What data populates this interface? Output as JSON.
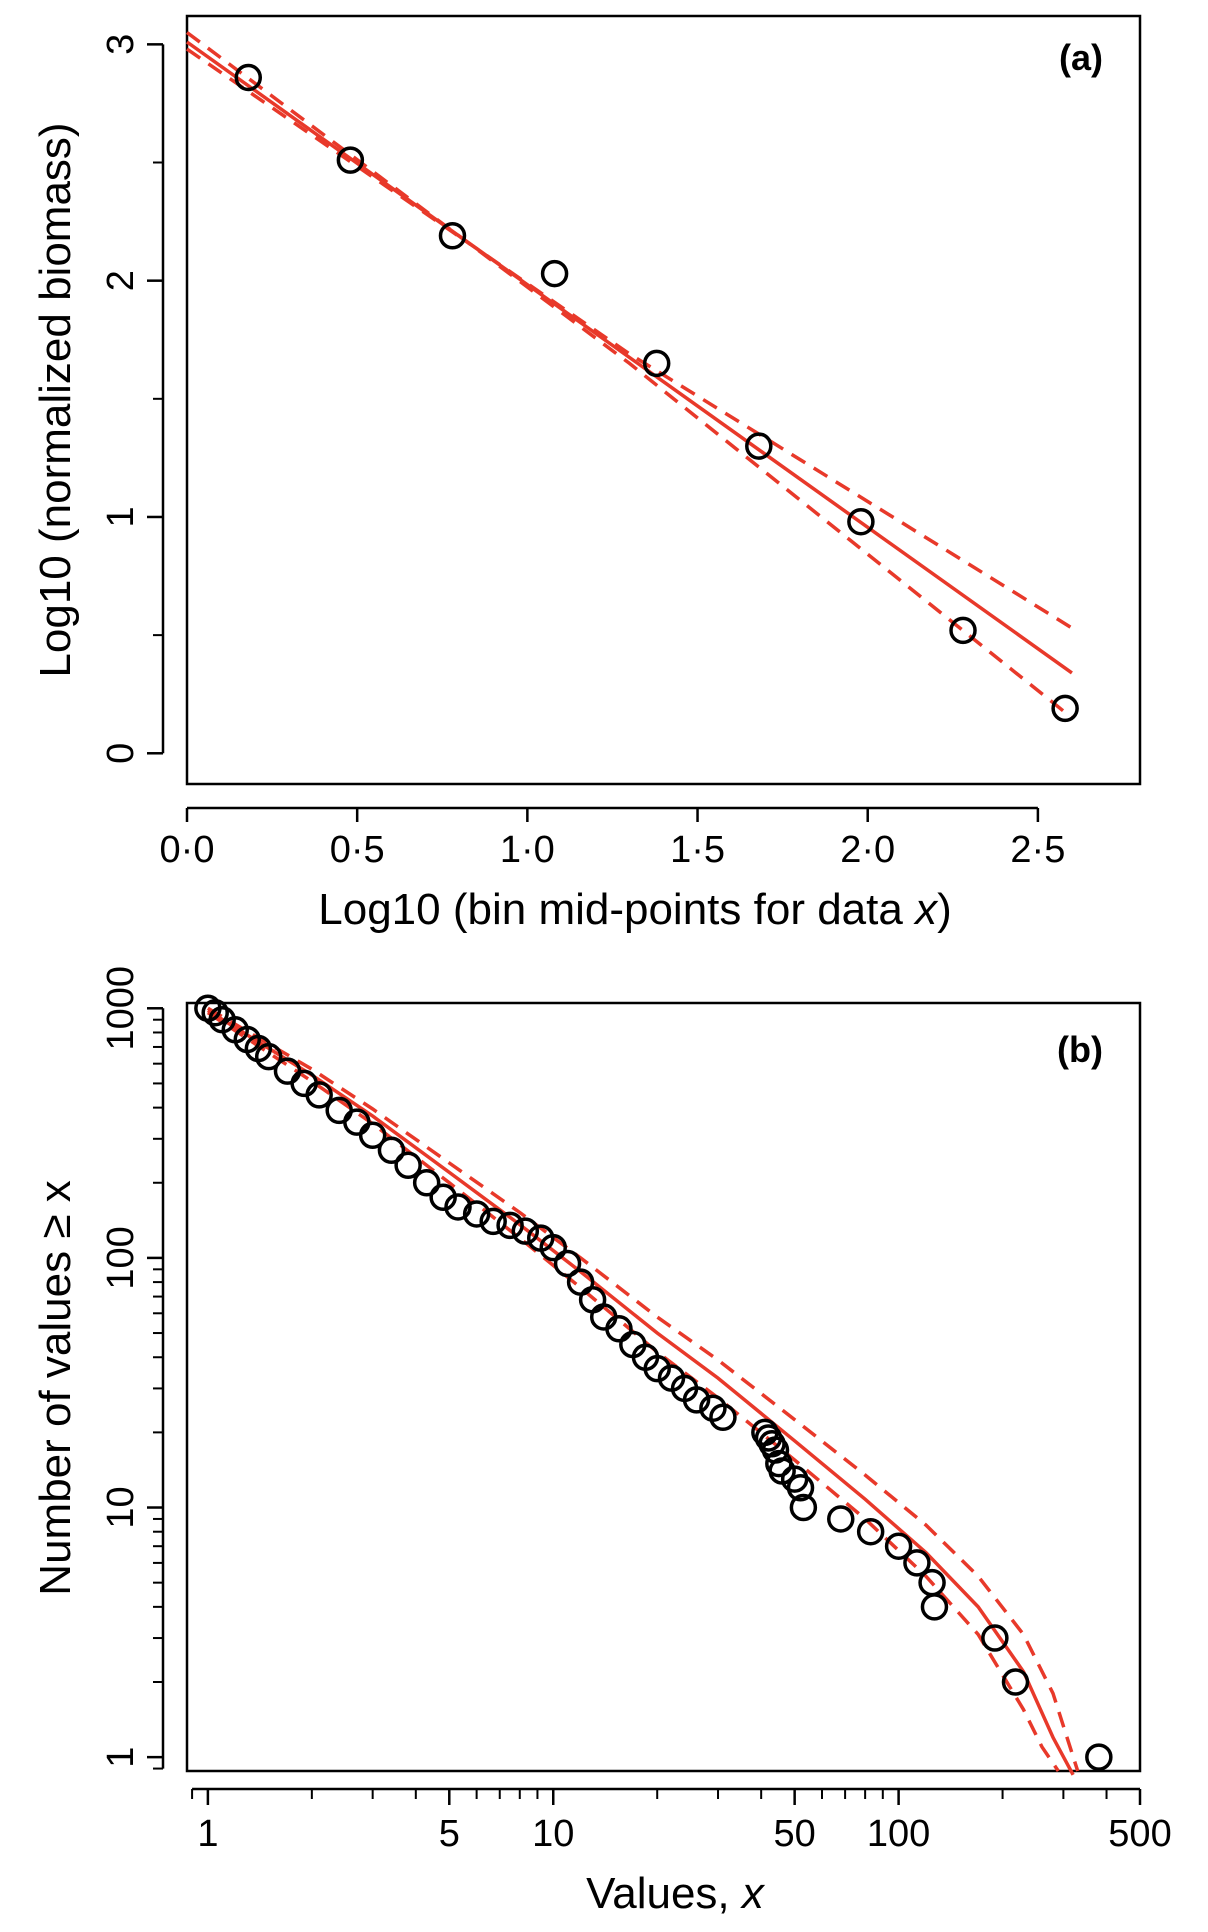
{
  "chart_data": [
    {
      "panel": "(a)",
      "type": "scatter",
      "xlabel": "Log10 (bin mid-points for data ",
      "xlabel_italic": "x",
      "xlabel_close": ")",
      "ylabel": "Log10 (normalized biomass)",
      "xlim": [
        0,
        2.8
      ],
      "ylim": [
        -0.13,
        3.12
      ],
      "x_ticks": [
        {
          "v": 0.0,
          "label": "0·0"
        },
        {
          "v": 0.5,
          "label": "0·5"
        },
        {
          "v": 1.0,
          "label": "1·0"
        },
        {
          "v": 1.5,
          "label": "1·5"
        },
        {
          "v": 2.0,
          "label": "2·0"
        },
        {
          "v": 2.5,
          "label": "2·5"
        }
      ],
      "y_ticks_major": [
        {
          "v": 0,
          "label": "0"
        },
        {
          "v": 1,
          "label": "1"
        },
        {
          "v": 2,
          "label": "2"
        },
        {
          "v": 3,
          "label": "3"
        }
      ],
      "y_ticks_minor": [
        0.5,
        1.5,
        2.5
      ],
      "points": {
        "x": [
          0.18,
          0.48,
          0.78,
          1.08,
          1.38,
          1.68,
          1.98,
          2.28,
          2.58
        ],
        "y": [
          2.86,
          2.51,
          2.19,
          2.03,
          1.65,
          1.3,
          0.98,
          0.52,
          0.19
        ]
      },
      "fit": {
        "x": [
          0.0,
          2.6
        ],
        "y": [
          3.01,
          0.34
        ]
      },
      "ci_upper": {
        "x": [
          0.0,
          1.3,
          2.6
        ],
        "y": [
          2.98,
          1.69,
          0.53
        ]
      },
      "ci_lower": {
        "x": [
          0.0,
          1.3,
          2.6
        ],
        "y": [
          3.05,
          1.65,
          0.15
        ]
      },
      "colors": {
        "points": "#000000",
        "fit": "#e8392a"
      },
      "grid": false
    },
    {
      "panel": "(b)",
      "type": "scatter",
      "xscale": "log",
      "yscale": "log",
      "xlabel": "Values, ",
      "xlabel_italic": "x",
      "ylabel": "Number of values ≥ x",
      "xlim": [
        0.87,
        500
      ],
      "ylim": [
        0.88,
        1050
      ],
      "x_ticks_labeled": [
        {
          "v": 1,
          "label": "1"
        },
        {
          "v": 5,
          "label": "5"
        },
        {
          "v": 10,
          "label": "10"
        },
        {
          "v": 50,
          "label": "50"
        },
        {
          "v": 100,
          "label": "100"
        },
        {
          "v": 500,
          "label": "500"
        }
      ],
      "y_ticks_labeled": [
        {
          "v": 1,
          "label": "1"
        },
        {
          "v": 10,
          "label": "10"
        },
        {
          "v": 100,
          "label": "100"
        },
        {
          "v": 1000,
          "label": "1000"
        }
      ],
      "points": {
        "x": [
          1.0,
          1.05,
          1.1,
          1.2,
          1.3,
          1.4,
          1.5,
          1.7,
          1.9,
          2.1,
          2.4,
          2.7,
          3.0,
          3.4,
          3.8,
          4.3,
          4.8,
          5.3,
          6.0,
          6.7,
          7.5,
          8.3,
          9.2,
          10.0,
          11.0,
          12.0,
          13.0,
          14.0,
          15.5,
          17.0,
          18.5,
          20.0,
          22.0,
          24.0,
          26.0,
          29.0,
          31.0,
          41.0,
          42.0,
          43.0,
          44.0,
          45.0,
          46.0,
          50.0,
          52.0,
          53.0,
          68.0,
          83.0,
          100.0,
          113.0,
          125.0,
          127.0,
          190.0,
          218.0,
          380.0
        ],
        "y": [
          1000,
          960,
          900,
          820,
          750,
          690,
          640,
          560,
          500,
          450,
          390,
          350,
          310,
          270,
          235,
          200,
          175,
          160,
          150,
          140,
          135,
          128,
          120,
          110,
          95,
          80,
          68,
          58,
          52,
          45,
          40,
          36,
          33,
          30,
          27,
          25,
          23,
          20,
          19,
          18,
          17,
          15,
          14,
          13,
          12,
          10,
          9,
          8,
          7,
          6,
          5,
          4,
          3,
          2,
          1
        ]
      },
      "fit": {
        "x": [
          1,
          2,
          3,
          5,
          8,
          12,
          20,
          30,
          50,
          80,
          120,
          170,
          230,
          280,
          320
        ],
        "y": [
          980,
          540,
          370,
          220,
          136,
          88,
          50,
          33,
          18.5,
          10.8,
          6.6,
          4.0,
          2.2,
          1.2,
          0.85
        ]
      },
      "ci_upper": {
        "x": [
          1,
          2,
          3,
          5,
          8,
          12,
          20,
          30,
          50,
          80,
          120,
          170,
          230,
          280,
          330
        ],
        "y": [
          1000,
          570,
          395,
          240,
          152,
          100,
          58,
          39,
          22.5,
          13.5,
          8.5,
          5.3,
          3.1,
          1.8,
          0.88
        ]
      },
      "ci_lower": {
        "x": [
          1,
          2,
          3,
          5,
          8,
          12,
          20,
          30,
          50,
          80,
          120,
          170,
          230,
          260,
          290
        ],
        "y": [
          960,
          510,
          345,
          200,
          120,
          76,
          42,
          27.5,
          15.5,
          9.0,
          5.3,
          3.1,
          1.55,
          1.1,
          0.88
        ]
      },
      "colors": {
        "points": "#000000",
        "fit": "#e8392a"
      },
      "grid": false
    }
  ]
}
